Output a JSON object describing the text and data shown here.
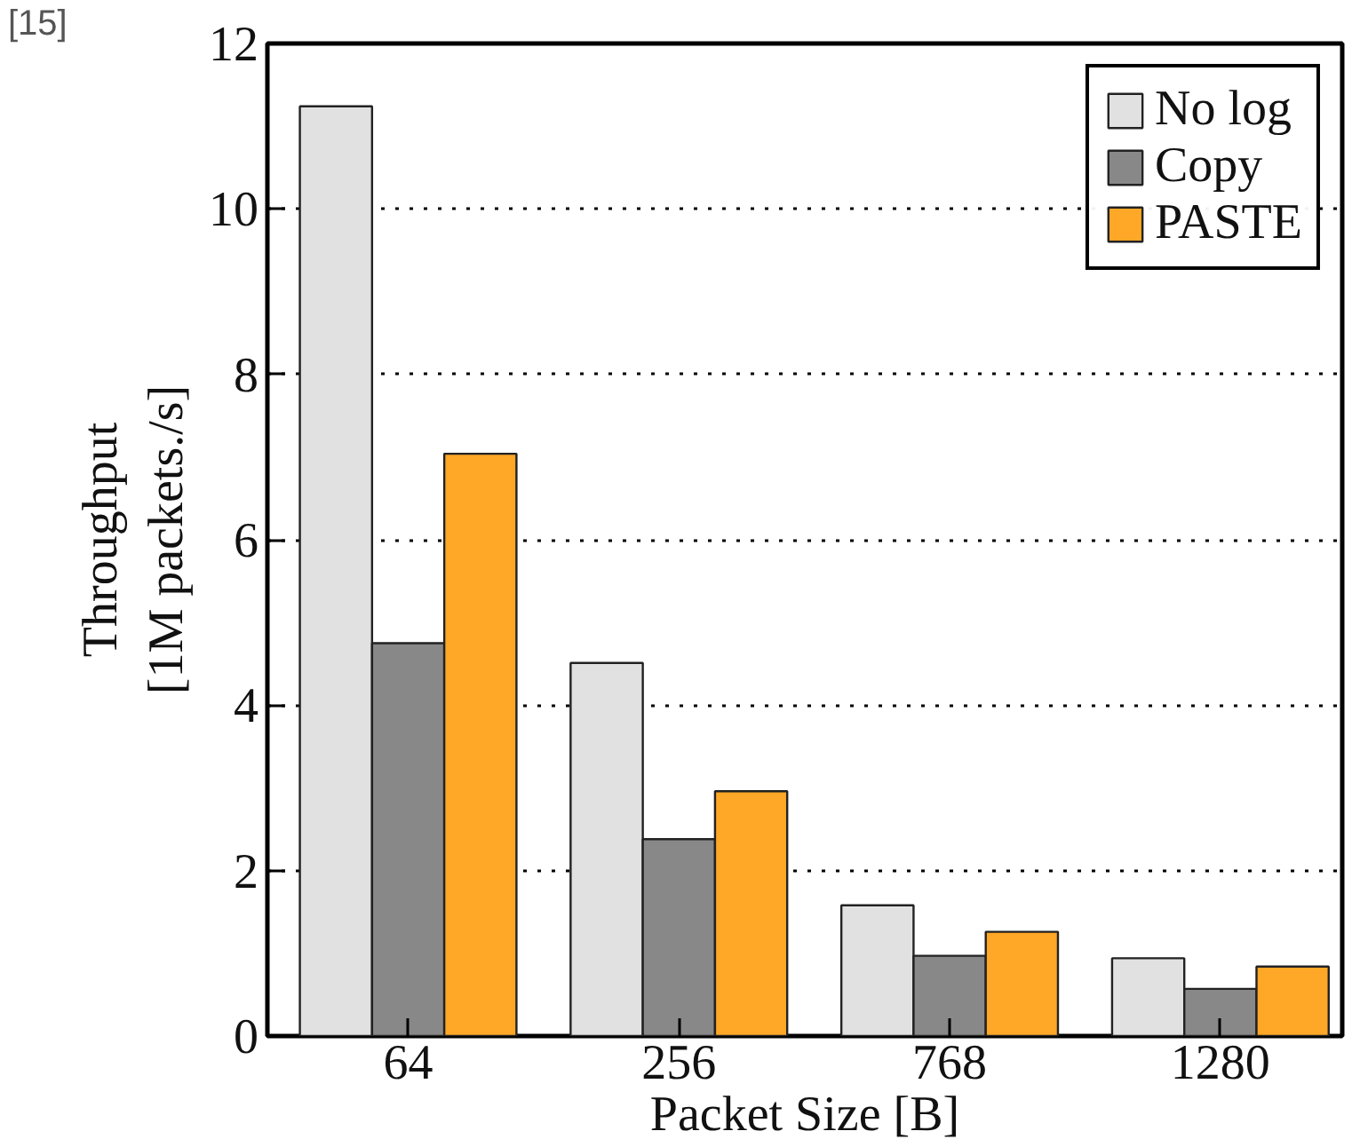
{
  "chart_data": {
    "type": "bar",
    "xlabel": "Packet Size [B]",
    "ylabel": "Throughput\n[1M packets./s]",
    "categories": [
      "64",
      "256",
      "768",
      "1280"
    ],
    "series": [
      {
        "name": "No log",
        "color": "#e1e1e1",
        "values": [
          11.24,
          4.51,
          1.58,
          0.94
        ]
      },
      {
        "name": "Copy",
        "color": "#888888",
        "values": [
          4.75,
          2.38,
          0.97,
          0.57
        ]
      },
      {
        "name": "PASTE",
        "color": "#ffa726",
        "values": [
          7.04,
          2.96,
          1.26,
          0.84
        ]
      }
    ],
    "ylim": [
      0,
      12
    ],
    "yticks": [
      0,
      2,
      4,
      6,
      8,
      10,
      12
    ],
    "grid": "y",
    "legend": "top right",
    "annotations": [
      "[15]"
    ]
  }
}
